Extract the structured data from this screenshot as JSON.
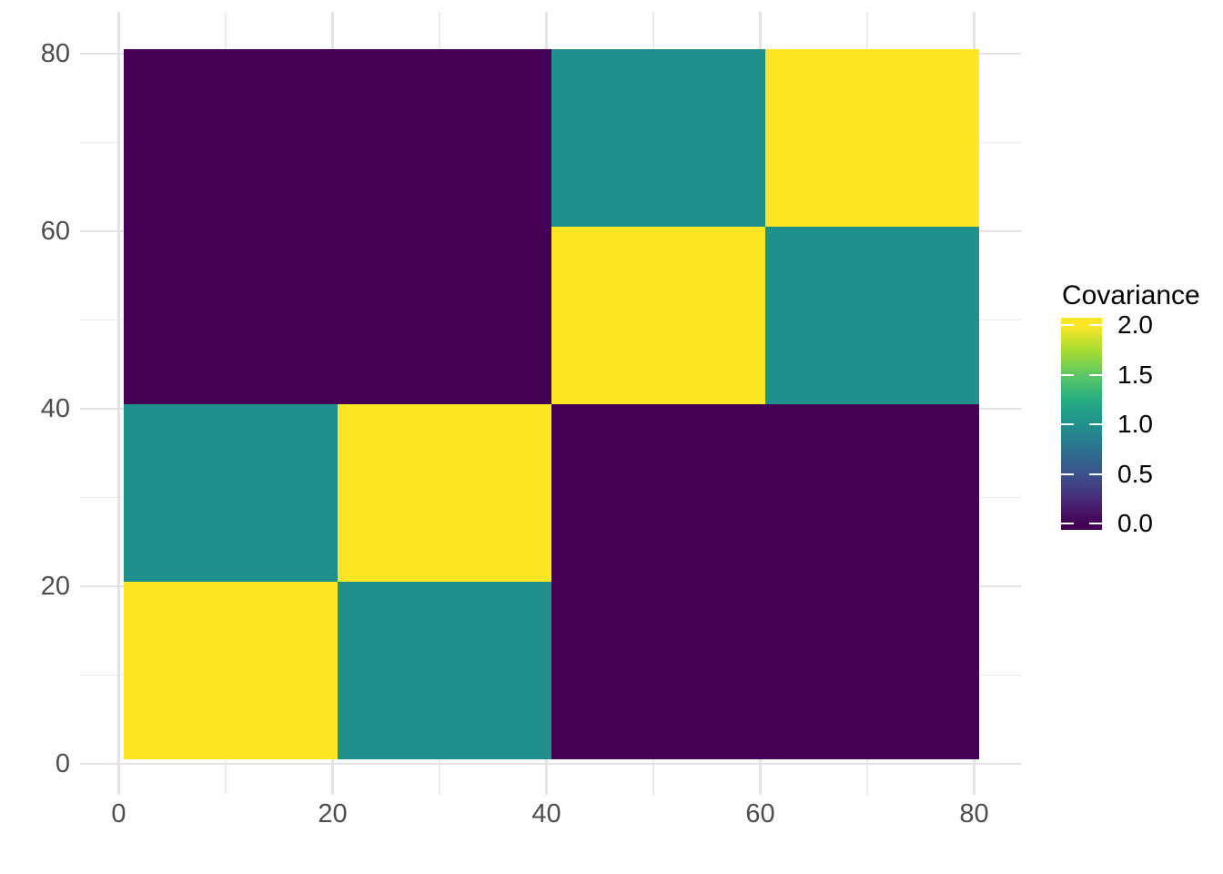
{
  "chart_data": {
    "type": "heatmap",
    "title": "",
    "xlabel": "",
    "ylabel": "",
    "x_domain": [
      0,
      80
    ],
    "y_domain": [
      0,
      80
    ],
    "block_size": 20,
    "tile_extent": {
      "x": [
        0.5,
        80.5
      ],
      "y": [
        0.5,
        80.5
      ]
    },
    "matrix_rows_bottom_to_top": [
      [
        2,
        1,
        0,
        0
      ],
      [
        1,
        2,
        0,
        0
      ],
      [
        0,
        0,
        2,
        1
      ],
      [
        0,
        0,
        1,
        2
      ]
    ],
    "x_major_ticks": [
      0,
      20,
      40,
      60,
      80
    ],
    "x_minor_ticks": [
      10,
      30,
      50,
      70
    ],
    "y_major_ticks": [
      0,
      20,
      40,
      60,
      80
    ],
    "y_minor_ticks": [
      10,
      30,
      50,
      70
    ],
    "x_tick_labels": [
      "0",
      "20",
      "40",
      "60",
      "80"
    ],
    "y_tick_labels": [
      "0",
      "20",
      "40",
      "60",
      "80"
    ],
    "grid": {
      "major_color": "#E3E3E3",
      "minor_color": "#EBEBEB"
    },
    "axis_text_color": "#4D4D4D",
    "color_scale": {
      "name": "viridis",
      "domain": [
        0,
        2
      ],
      "gradient_stops": [
        {
          "value": 0.0,
          "color": "#440154"
        },
        {
          "value": 0.25,
          "color": "#472D7B"
        },
        {
          "value": 0.5,
          "color": "#3B528B"
        },
        {
          "value": 0.75,
          "color": "#2C728E"
        },
        {
          "value": 1.0,
          "color": "#21908C"
        },
        {
          "value": 1.25,
          "color": "#27AD81"
        },
        {
          "value": 1.5,
          "color": "#5DC863"
        },
        {
          "value": 1.75,
          "color": "#AADC32"
        },
        {
          "value": 2.0,
          "color": "#FDE725"
        }
      ]
    },
    "legend": {
      "title": "Covariance",
      "tick_values": [
        2.0,
        1.5,
        1.0,
        0.5,
        0.0
      ],
      "tick_labels": [
        "2.0",
        "1.5",
        "1.0",
        "0.5",
        "0.0"
      ]
    }
  }
}
